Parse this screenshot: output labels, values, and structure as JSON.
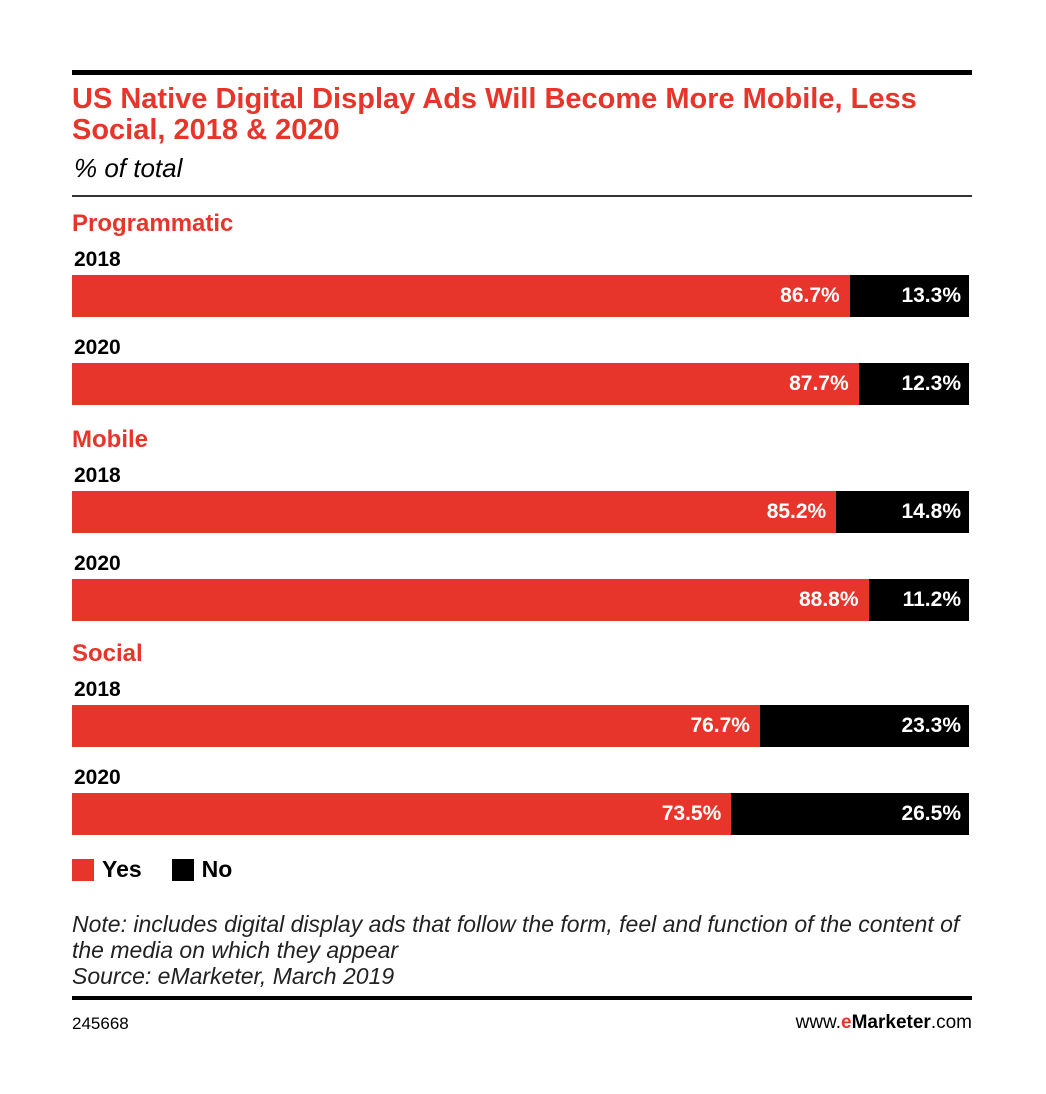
{
  "title": "US Native Digital Display Ads Will Become More Mobile, Less Social, 2018 & 2020",
  "subtitle": "% of total",
  "colors": {
    "yes": "#e8352b",
    "no": "#000000"
  },
  "legend": {
    "yes": "Yes",
    "no": "No"
  },
  "note": "Note: includes digital display ads that follow the form, feel and function of the content of the media on which they appear",
  "source": "Source: eMarketer, March 2019",
  "footer": {
    "id": "245668",
    "site_prefix": "www.",
    "site_brand_e": "e",
    "site_brand_rest": "Marketer",
    "site_suffix": ".com"
  },
  "chart_data": {
    "type": "bar",
    "orientation": "horizontal",
    "stacked": true,
    "title": "US Native Digital Display Ads Will Become More Mobile, Less Social, 2018 & 2020",
    "subtitle": "% of total",
    "unit": "%",
    "series_names": [
      "Yes",
      "No"
    ],
    "groups": [
      {
        "name": "Programmatic",
        "rows": [
          {
            "year": "2018",
            "yes": 86.7,
            "no": 13.3,
            "yes_label": "86.7%",
            "no_label": "13.3%"
          },
          {
            "year": "2020",
            "yes": 87.7,
            "no": 12.3,
            "yes_label": "87.7%",
            "no_label": "12.3%"
          }
        ]
      },
      {
        "name": "Mobile",
        "rows": [
          {
            "year": "2018",
            "yes": 85.2,
            "no": 14.8,
            "yes_label": "85.2%",
            "no_label": "14.8%"
          },
          {
            "year": "2020",
            "yes": 88.8,
            "no": 11.2,
            "yes_label": "88.8%",
            "no_label": "11.2%"
          }
        ]
      },
      {
        "name": "Social",
        "rows": [
          {
            "year": "2018",
            "yes": 76.7,
            "no": 23.3,
            "yes_label": "76.7%",
            "no_label": "23.3%"
          },
          {
            "year": "2020",
            "yes": 73.5,
            "no": 26.5,
            "yes_label": "73.5%",
            "no_label": "26.5%"
          }
        ]
      }
    ]
  }
}
